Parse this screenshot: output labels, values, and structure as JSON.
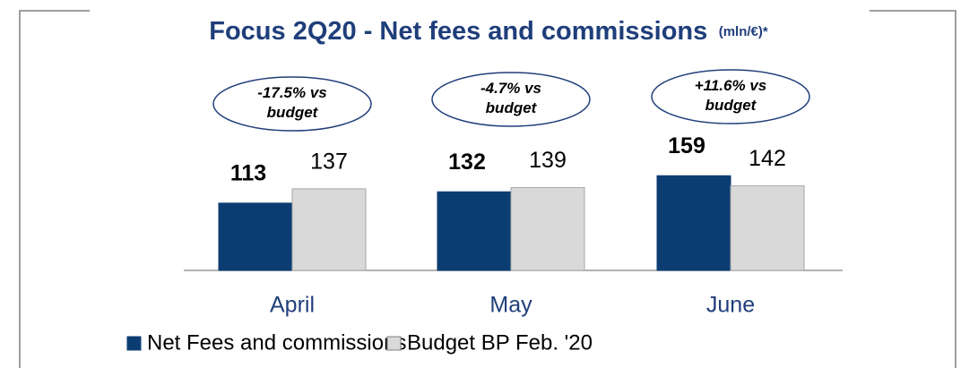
{
  "chart_data": {
    "type": "bar",
    "title": "Focus 2Q20 - Net fees and commissions",
    "subtitle": "(mln/€)*",
    "categories": [
      "April",
      "May",
      "June"
    ],
    "series": [
      {
        "name": "Net Fees and commissions",
        "color": "#0c3d72",
        "values": [
          113,
          132,
          159
        ]
      },
      {
        "name": "Budget BP Feb. '20",
        "color": "#d9d9d9",
        "values": [
          137,
          139,
          142
        ]
      }
    ],
    "annotations": [
      [
        "-17.5% vs",
        "budget"
      ],
      [
        "-4.7% vs",
        "budget"
      ],
      [
        "+11.6% vs",
        "budget"
      ]
    ]
  }
}
